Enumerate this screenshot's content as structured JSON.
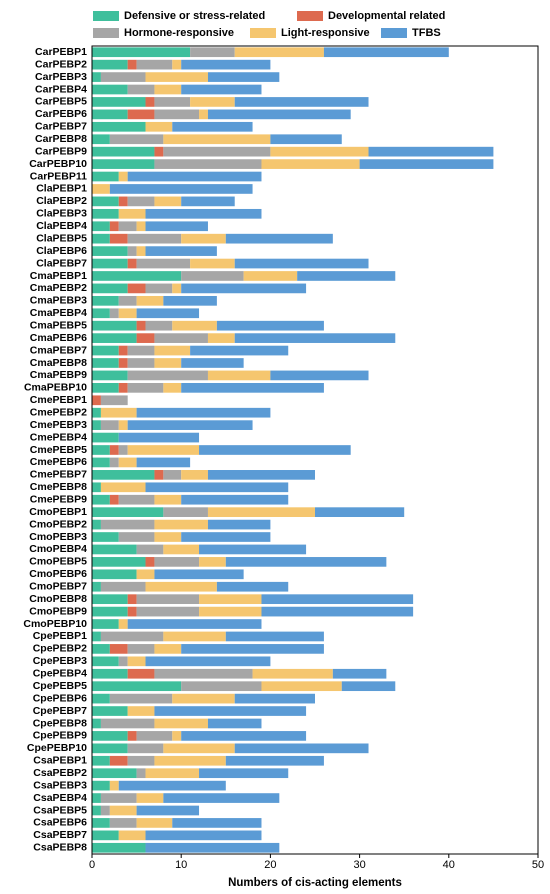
{
  "chart_data": {
    "type": "stacked-barh",
    "xlabel": "Numbers of cis-acting elements",
    "categories": [
      "CarPEBP1",
      "CarPEBP2",
      "CarPEBP3",
      "CarPEBP4",
      "CarPEBP5",
      "CarPEBP6",
      "CarPEBP7",
      "CarPEBP8",
      "CarPEBP9",
      "CarPEBP10",
      "CarPEBP11",
      "ClaPEBP1",
      "ClaPEBP2",
      "ClaPEBP3",
      "ClaPEBP4",
      "ClaPEBP5",
      "ClaPEBP6",
      "ClaPEBP7",
      "CmaPEBP1",
      "CmaPEBP2",
      "CmaPEBP3",
      "CmaPEBP4",
      "CmaPEBP5",
      "CmaPEBP6",
      "CmaPEBP7",
      "CmaPEBP8",
      "CmaPEBP9",
      "CmaPEBP10",
      "CmePEBP1",
      "CmePEBP2",
      "CmePEBP3",
      "CmePEBP4",
      "CmePEBP5",
      "CmePEBP6",
      "CmePEBP7",
      "CmePEBP8",
      "CmePEBP9",
      "CmoPEBP1",
      "CmoPEBP2",
      "CmoPEBP3",
      "CmoPEBP4",
      "CmoPEBP5",
      "CmoPEBP6",
      "CmoPEBP7",
      "CmoPEBP8",
      "CmoPEBP9",
      "CmoPEBP10",
      "CpePEBP1",
      "CpePEBP2",
      "CpePEBP3",
      "CpePEBP4",
      "CpePEBP5",
      "CpePEBP6",
      "CpePEBP7",
      "CpePEBP8",
      "CpePEBP9",
      "CpePEBP10",
      "CsaPEBP1",
      "CsaPEBP2",
      "CsaPEBP3",
      "CsaPEBP4",
      "CsaPEBP5",
      "CsaPEBP6",
      "CsaPEBP7",
      "CsaPEBP8"
    ],
    "series": [
      {
        "name": "Defensive or stress-related",
        "color": "#3fbf9c",
        "values": [
          11,
          4,
          1,
          4,
          6,
          4,
          6,
          2,
          7,
          7,
          3,
          0,
          3,
          3,
          2,
          2,
          4,
          4,
          10,
          4,
          3,
          2,
          5,
          5,
          3,
          3,
          4,
          3,
          0,
          1,
          1,
          3,
          2,
          2,
          7,
          1,
          2,
          8,
          1,
          3,
          5,
          6,
          5,
          1,
          4,
          4,
          3,
          1,
          2,
          3,
          4,
          10,
          2,
          4,
          1,
          4,
          4,
          2,
          5,
          2,
          1,
          1,
          2,
          3,
          6
        ]
      },
      {
        "name": "Developmental related",
        "color": "#dd6a4f",
        "values": [
          0,
          1,
          0,
          0,
          1,
          3,
          0,
          0,
          1,
          0,
          0,
          0,
          1,
          0,
          1,
          2,
          0,
          1,
          0,
          2,
          0,
          0,
          1,
          2,
          1,
          1,
          0,
          1,
          1,
          0,
          0,
          0,
          1,
          0,
          1,
          0,
          1,
          0,
          0,
          0,
          0,
          1,
          0,
          0,
          1,
          1,
          0,
          0,
          2,
          0,
          3,
          0,
          0,
          0,
          0,
          1,
          0,
          2,
          0,
          0,
          0,
          0,
          0,
          0,
          0
        ]
      },
      {
        "name": "Hormone-responsive",
        "color": "#a6a6a6",
        "values": [
          5,
          4,
          5,
          3,
          4,
          5,
          0,
          6,
          12,
          12,
          0,
          0,
          3,
          0,
          2,
          6,
          1,
          6,
          7,
          3,
          2,
          1,
          3,
          6,
          3,
          3,
          9,
          4,
          3,
          0,
          2,
          0,
          1,
          1,
          2,
          0,
          4,
          5,
          6,
          4,
          3,
          5,
          0,
          5,
          7,
          7,
          0,
          7,
          3,
          1,
          11,
          9,
          7,
          0,
          6,
          4,
          4,
          3,
          1,
          0,
          4,
          1,
          3,
          0,
          0
        ]
      },
      {
        "name": "Light-responsive",
        "color": "#f5c66f",
        "values": [
          10,
          1,
          7,
          3,
          5,
          1,
          3,
          12,
          11,
          11,
          1,
          2,
          3,
          3,
          1,
          5,
          1,
          5,
          6,
          1,
          3,
          2,
          5,
          3,
          4,
          3,
          7,
          2,
          0,
          4,
          1,
          0,
          8,
          2,
          3,
          5,
          3,
          12,
          6,
          3,
          4,
          3,
          2,
          8,
          7,
          7,
          1,
          7,
          3,
          2,
          9,
          9,
          7,
          3,
          6,
          1,
          8,
          8,
          6,
          1,
          3,
          3,
          4,
          3,
          0
        ]
      },
      {
        "name": "TFBS",
        "color": "#5b9bd5",
        "values": [
          14,
          10,
          8,
          9,
          15,
          16,
          9,
          8,
          14,
          15,
          15,
          16,
          6,
          13,
          7,
          12,
          8,
          15,
          11,
          14,
          6,
          7,
          12,
          18,
          11,
          7,
          11,
          16,
          0,
          15,
          14,
          9,
          17,
          6,
          12,
          16,
          12,
          10,
          7,
          10,
          12,
          18,
          10,
          8,
          17,
          17,
          15,
          11,
          16,
          14,
          6,
          6,
          9,
          17,
          6,
          14,
          15,
          11,
          10,
          12,
          13,
          7,
          10,
          13,
          15
        ]
      }
    ],
    "xlim": [
      0,
      50
    ],
    "xticks": [
      0,
      10,
      20,
      30,
      40,
      50
    ]
  }
}
